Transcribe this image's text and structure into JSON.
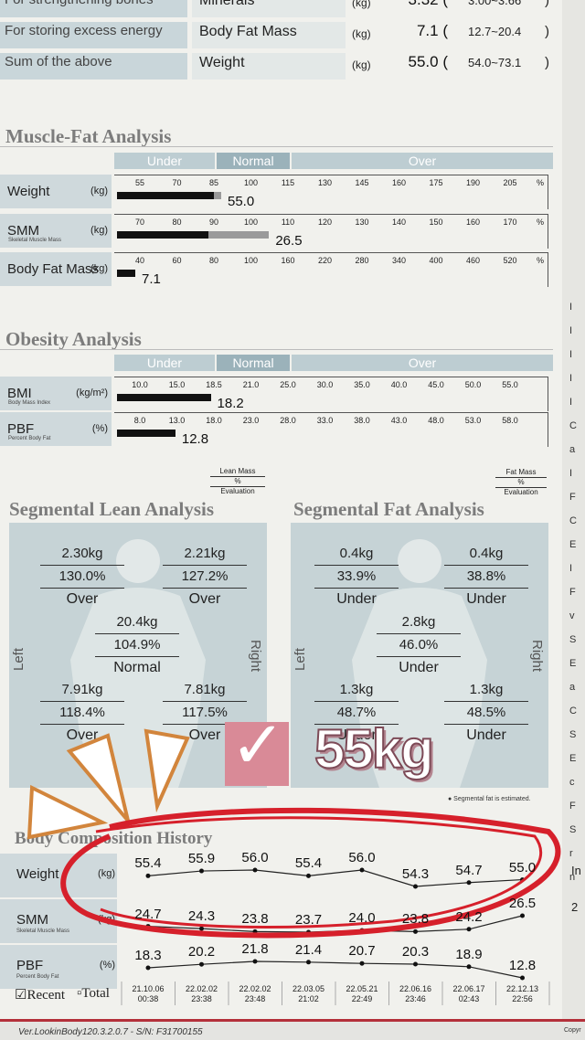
{
  "composition": [
    {
      "desc": "For strengthening bones",
      "name": "Minerals",
      "unit": "(kg)",
      "value": "3.32 (",
      "range": "3.00~3.66",
      "close": ")"
    },
    {
      "desc": "For storing excess energy",
      "name": "Body Fat Mass",
      "unit": "(kg)",
      "value": "7.1 (",
      "range": "12.7~20.4",
      "close": ")"
    },
    {
      "desc": "Sum of the above",
      "name": "Weight",
      "unit": "(kg)",
      "value": "55.0 (",
      "range": "54.0~73.1",
      "close": ")"
    }
  ],
  "band_labels": {
    "under": "Under",
    "normal": "Normal",
    "over": "Over"
  },
  "muscle_fat": {
    "title": "Muscle-Fat Analysis",
    "rows": [
      {
        "label": "Weight",
        "sub": "",
        "unit": "(kg)",
        "ticks": [
          "55",
          "70",
          "85",
          "100",
          "115",
          "130",
          "145",
          "160",
          "175",
          "190",
          "205"
        ],
        "pct": "%",
        "value": "55.0",
        "percent": 85
      },
      {
        "label": "SMM",
        "sub": "Skeletal Muscle Mass",
        "unit": "(kg)",
        "ticks": [
          "70",
          "80",
          "90",
          "100",
          "110",
          "120",
          "130",
          "140",
          "150",
          "160",
          "170"
        ],
        "pct": "%",
        "value": "26.5",
        "percent": 104.9
      },
      {
        "label": "Body Fat Mass",
        "sub": "",
        "unit": "(kg)",
        "ticks": [
          "40",
          "60",
          "80",
          "100",
          "160",
          "220",
          "280",
          "340",
          "400",
          "460",
          "520"
        ],
        "pct": "%",
        "value": "7.1",
        "percent": 43
      }
    ]
  },
  "obesity": {
    "title": "Obesity Analysis",
    "rows": [
      {
        "label": "BMI",
        "sub": "Body Mass Index",
        "unit": "(kg/m²)",
        "ticks": [
          "10.0",
          "15.0",
          "18.5",
          "21.0",
          "25.0",
          "30.0",
          "35.0",
          "40.0",
          "45.0",
          "50.0",
          "55.0"
        ],
        "pct": "",
        "value": "18.2",
        "metric": 18.2
      },
      {
        "label": "PBF",
        "sub": "Percent Body Fat",
        "unit": "(%)",
        "ticks": [
          "8.0",
          "13.0",
          "18.0",
          "23.0",
          "28.0",
          "33.0",
          "38.0",
          "43.0",
          "48.0",
          "53.0",
          "58.0"
        ],
        "pct": "",
        "value": "12.8",
        "metric": 12.8
      }
    ]
  },
  "segmental_lean": {
    "title": "Segmental Lean Analysis",
    "legend": [
      "Lean Mass",
      "%",
      "Evaluation"
    ],
    "left_label": "Left",
    "right_label": "Right",
    "left_arm": {
      "kg": "2.30kg",
      "pct": "130.0%",
      "eval": "Over"
    },
    "right_arm": {
      "kg": "2.21kg",
      "pct": "127.2%",
      "eval": "Over"
    },
    "trunk": {
      "kg": "20.4kg",
      "pct": "104.9%",
      "eval": "Normal"
    },
    "left_leg": {
      "kg": "7.91kg",
      "pct": "118.4%",
      "eval": "Over"
    },
    "right_leg": {
      "kg": "7.81kg",
      "pct": "117.5%",
      "eval": "Over"
    }
  },
  "segmental_fat": {
    "title": "Segmental Fat Analysis",
    "legend": [
      "Fat Mass",
      "%",
      "Evaluation"
    ],
    "left_label": "Left",
    "right_label": "Right",
    "left_arm": {
      "kg": "0.4kg",
      "pct": "33.9%",
      "eval": "Under"
    },
    "right_arm": {
      "kg": "0.4kg",
      "pct": "38.8%",
      "eval": "Under"
    },
    "trunk": {
      "kg": "2.8kg",
      "pct": "46.0%",
      "eval": "Under"
    },
    "left_leg": {
      "kg": "1.3kg",
      "pct": "48.7%",
      "eval": "Under"
    },
    "right_leg": {
      "kg": "1.3kg",
      "pct": "48.5%",
      "eval": "Under"
    },
    "note": "● Segmental fat is estimated."
  },
  "sticker": {
    "text": "55kg",
    "check": "✓"
  },
  "history": {
    "title": "Body Composition History",
    "rows": [
      {
        "label": "Weight",
        "sub": "",
        "unit": "(kg)",
        "values": [
          55.4,
          55.9,
          56.0,
          55.4,
          56.0,
          54.3,
          54.7,
          55.0
        ],
        "labels": [
          "55.4",
          "55.9",
          "56.0",
          "55.4",
          "56.0",
          "54.3",
          "54.7",
          "55.0"
        ]
      },
      {
        "label": "SMM",
        "sub": "Skeletal Muscle Mass",
        "unit": "(kg)",
        "values": [
          24.7,
          24.3,
          23.8,
          23.7,
          24.0,
          23.8,
          24.2,
          26.5
        ],
        "labels": [
          "24.7",
          "24.3",
          "23.8",
          "23.7",
          "24.0",
          "23.8",
          "24.2",
          "26.5"
        ]
      },
      {
        "label": "PBF",
        "sub": "Percent Body Fat",
        "unit": "(%)",
        "values": [
          18.3,
          20.2,
          21.8,
          21.4,
          20.7,
          20.3,
          18.9,
          12.8
        ],
        "labels": [
          "18.3",
          "20.2",
          "21.8",
          "21.4",
          "20.7",
          "20.3",
          "18.9",
          "12.8"
        ]
      }
    ],
    "dates": [
      [
        "21.10.06",
        "00:38"
      ],
      [
        "22.02.02",
        "23:38"
      ],
      [
        "22.02.02",
        "23:48"
      ],
      [
        "22.03.05",
        "21:02"
      ],
      [
        "22.05.21",
        "22:49"
      ],
      [
        "22.06.16",
        "23:46"
      ],
      [
        "22.06.17",
        "02:43"
      ],
      [
        "22.12.13",
        "22:56"
      ]
    ],
    "recent": "Recent",
    "total": "Total"
  },
  "footer": {
    "version": "Ver.LookinBody120.3.2.0.7 - S/N: F31700155",
    "copyright": "Copyr"
  },
  "right_margin": {
    "letters": [
      "I",
      "I",
      "I",
      "I",
      "I",
      "C",
      "a",
      "I",
      "F",
      "C",
      "E",
      "I",
      "F",
      "v",
      "S",
      "E",
      "a",
      "C",
      "S",
      "E",
      "c",
      "F",
      "S",
      "r",
      "n"
    ],
    "big": [
      "In",
      "2"
    ]
  }
}
